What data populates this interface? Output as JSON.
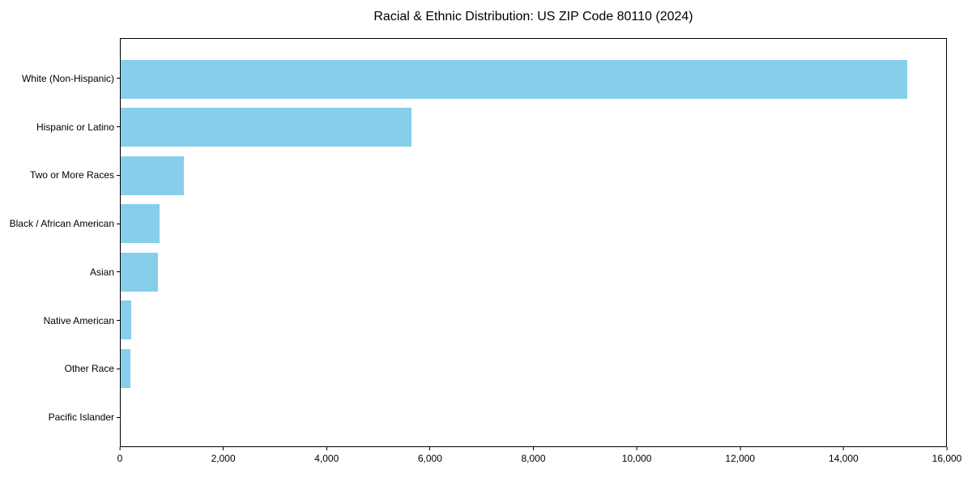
{
  "chart_data": {
    "type": "bar",
    "orientation": "horizontal",
    "title": "Racial & Ethnic Distribution: US ZIP Code 80110 (2024)",
    "categories": [
      "White (Non-Hispanic)",
      "Hispanic or Latino",
      "Two or More Races",
      "Black / African American",
      "Asian",
      "Native American",
      "Other Race",
      "Pacific Islander"
    ],
    "values": [
      15250,
      5630,
      1230,
      750,
      720,
      210,
      190,
      0
    ],
    "xlim": [
      0,
      16000
    ],
    "x_ticks": [
      0,
      2000,
      4000,
      6000,
      8000,
      10000,
      12000,
      14000,
      16000
    ],
    "x_tick_labels": [
      "0",
      "2,000",
      "4,000",
      "6,000",
      "8,000",
      "10,000",
      "12,000",
      "14,000",
      "16,000"
    ],
    "xlabel": "",
    "ylabel": "",
    "bar_color": "#87CEEB",
    "axis_color": "#000000",
    "background_color": "#ffffff",
    "grid": false,
    "legend": false
  }
}
